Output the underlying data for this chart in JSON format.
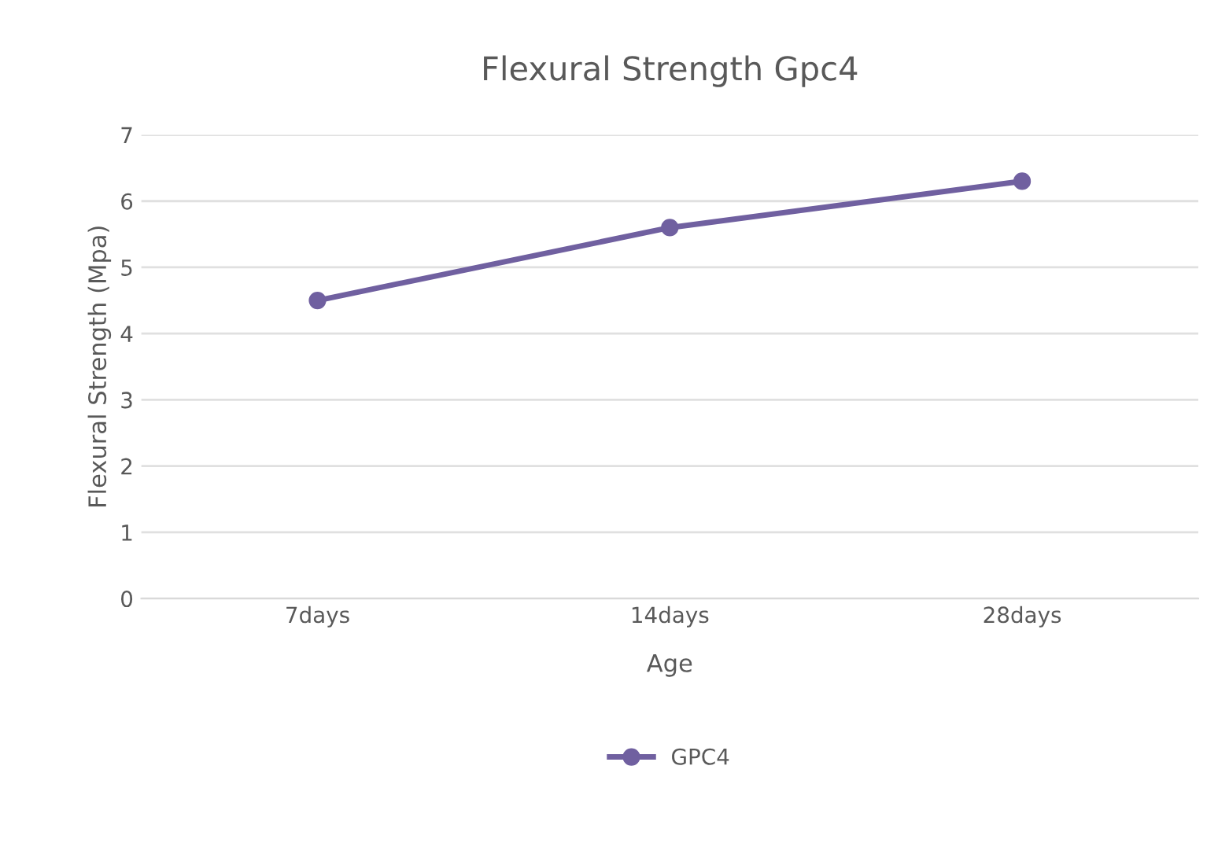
{
  "chart_data": {
    "type": "line",
    "title": "Flexural Strength Gpc4",
    "xlabel": "Age",
    "ylabel": "Flexural Strength (Mpa)",
    "categories": [
      "7days",
      "14days",
      "28days"
    ],
    "series": [
      {
        "name": "GPC4",
        "color": "#7060a0",
        "values": [
          4.5,
          5.6,
          6.3
        ]
      }
    ],
    "ylim": [
      0,
      7
    ],
    "yticks": [
      0,
      1,
      2,
      3,
      4,
      5,
      6,
      7
    ],
    "grid": "y",
    "legend": "bottom",
    "marker": "circle",
    "line_style": "solid"
  }
}
